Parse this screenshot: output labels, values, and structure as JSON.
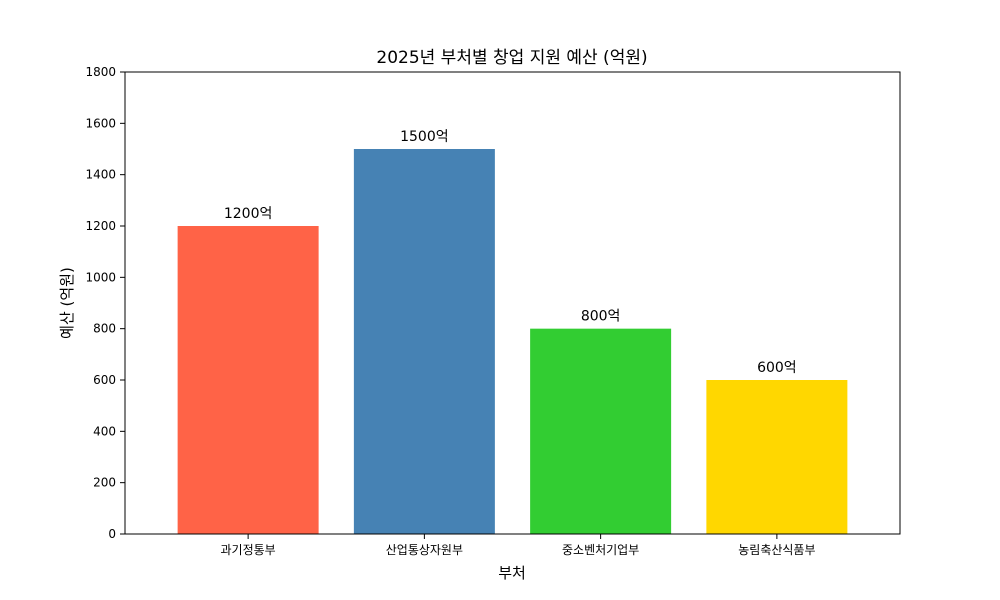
{
  "chart_data": {
    "type": "bar",
    "title": "2025년 부처별 창업 지원 예산 (억원)",
    "xlabel": "부처",
    "ylabel": "예산 (억원)",
    "categories": [
      "과기정통부",
      "산업통상자원부",
      "중소벤처기업부",
      "농림축산식품부"
    ],
    "values": [
      1200,
      1500,
      800,
      600
    ],
    "data_labels": [
      "1200억",
      "1500억",
      "800억",
      "600억"
    ],
    "colors": [
      "#FF6347",
      "#4682B4",
      "#32CD32",
      "#FFD700"
    ],
    "ylim": [
      0,
      1800
    ],
    "yticks": [
      0,
      200,
      400,
      600,
      800,
      1000,
      1200,
      1400,
      1600,
      1800
    ],
    "grid": false,
    "legend": false
  }
}
